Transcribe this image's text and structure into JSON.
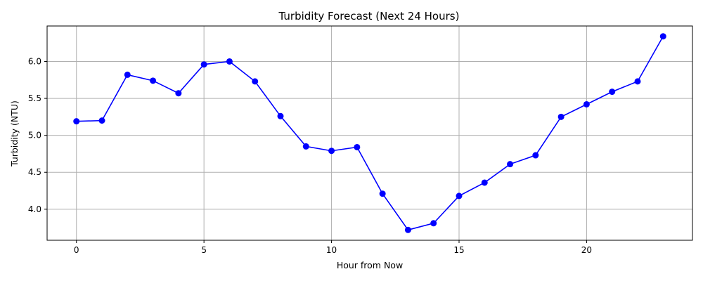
{
  "chart_data": {
    "type": "line",
    "title": "Turbidity Forecast (Next 24 Hours)",
    "xlabel": "Hour from Now",
    "ylabel": "Turbidity (NTU)",
    "x": [
      0,
      1,
      2,
      3,
      4,
      5,
      6,
      7,
      8,
      9,
      10,
      11,
      12,
      13,
      14,
      15,
      16,
      17,
      18,
      19,
      20,
      21,
      22,
      23
    ],
    "series": [
      {
        "values": [
          5.19,
          5.2,
          5.82,
          5.74,
          5.57,
          5.96,
          6.0,
          5.73,
          5.26,
          4.85,
          4.79,
          4.84,
          4.21,
          3.72,
          3.81,
          4.18,
          4.36,
          4.61,
          4.73,
          5.25,
          5.42,
          5.59,
          5.73,
          6.34
        ],
        "color": "#0000ff",
        "marker": "circle"
      }
    ],
    "xlim": [
      -1.15,
      24.15
    ],
    "ylim": [
      3.58,
      6.48
    ],
    "xticks": [
      0,
      5,
      10,
      15,
      20
    ],
    "yticks": [
      4.0,
      4.5,
      5.0,
      5.5,
      6.0
    ],
    "xtick_labels": [
      "0",
      "5",
      "10",
      "15",
      "20"
    ],
    "ytick_labels": [
      "4.0",
      "4.5",
      "5.0",
      "5.5",
      "6.0"
    ],
    "grid": true,
    "legend": "none"
  }
}
